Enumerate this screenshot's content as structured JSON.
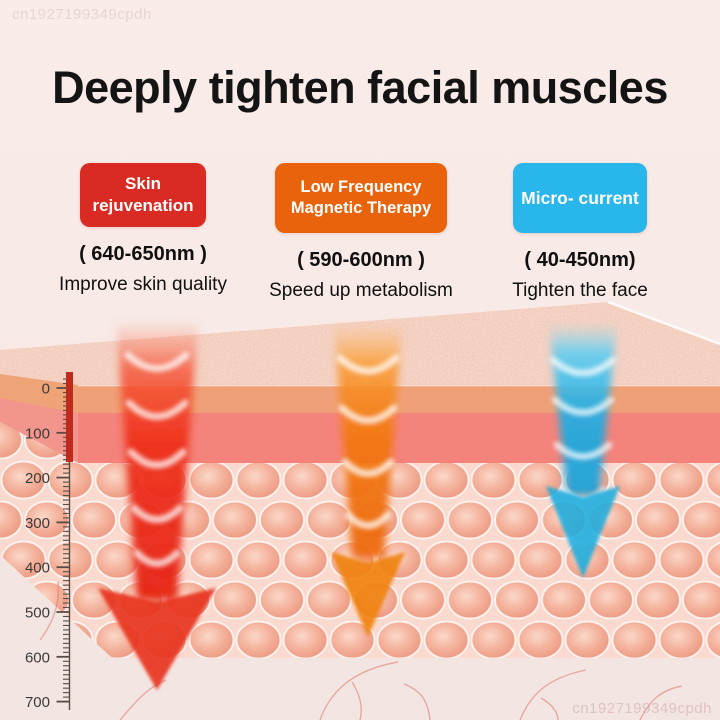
{
  "watermarks": {
    "top_left": "cn1927199349cpdh",
    "bottom_right": "cn1927199349cpdh"
  },
  "header": {
    "title": "Deeply tighten facial muscles"
  },
  "features": [
    {
      "badge_label": "Skin rejuvenation",
      "badge_color": "#d92b23",
      "wavelength": "( 640-650nm )",
      "benefit": "Improve skin quality",
      "beam_color": "#e8301c"
    },
    {
      "badge_label": "Low Frequency Magnetic Therapy",
      "badge_color": "#e8630c",
      "wavelength": "( 590-600nm )",
      "benefit": "Speed up metabolism",
      "beam_color": "#f0820f"
    },
    {
      "badge_label": "Micro- current",
      "badge_color": "#29b6eb",
      "wavelength": "( 40-450nm)",
      "benefit": "Tighten the face",
      "beam_color": "#1badde"
    }
  ],
  "illustration": {
    "depth_scale": {
      "labels": [
        "0",
        "100",
        "200",
        "300",
        "400",
        "500",
        "600",
        "700"
      ]
    }
  }
}
